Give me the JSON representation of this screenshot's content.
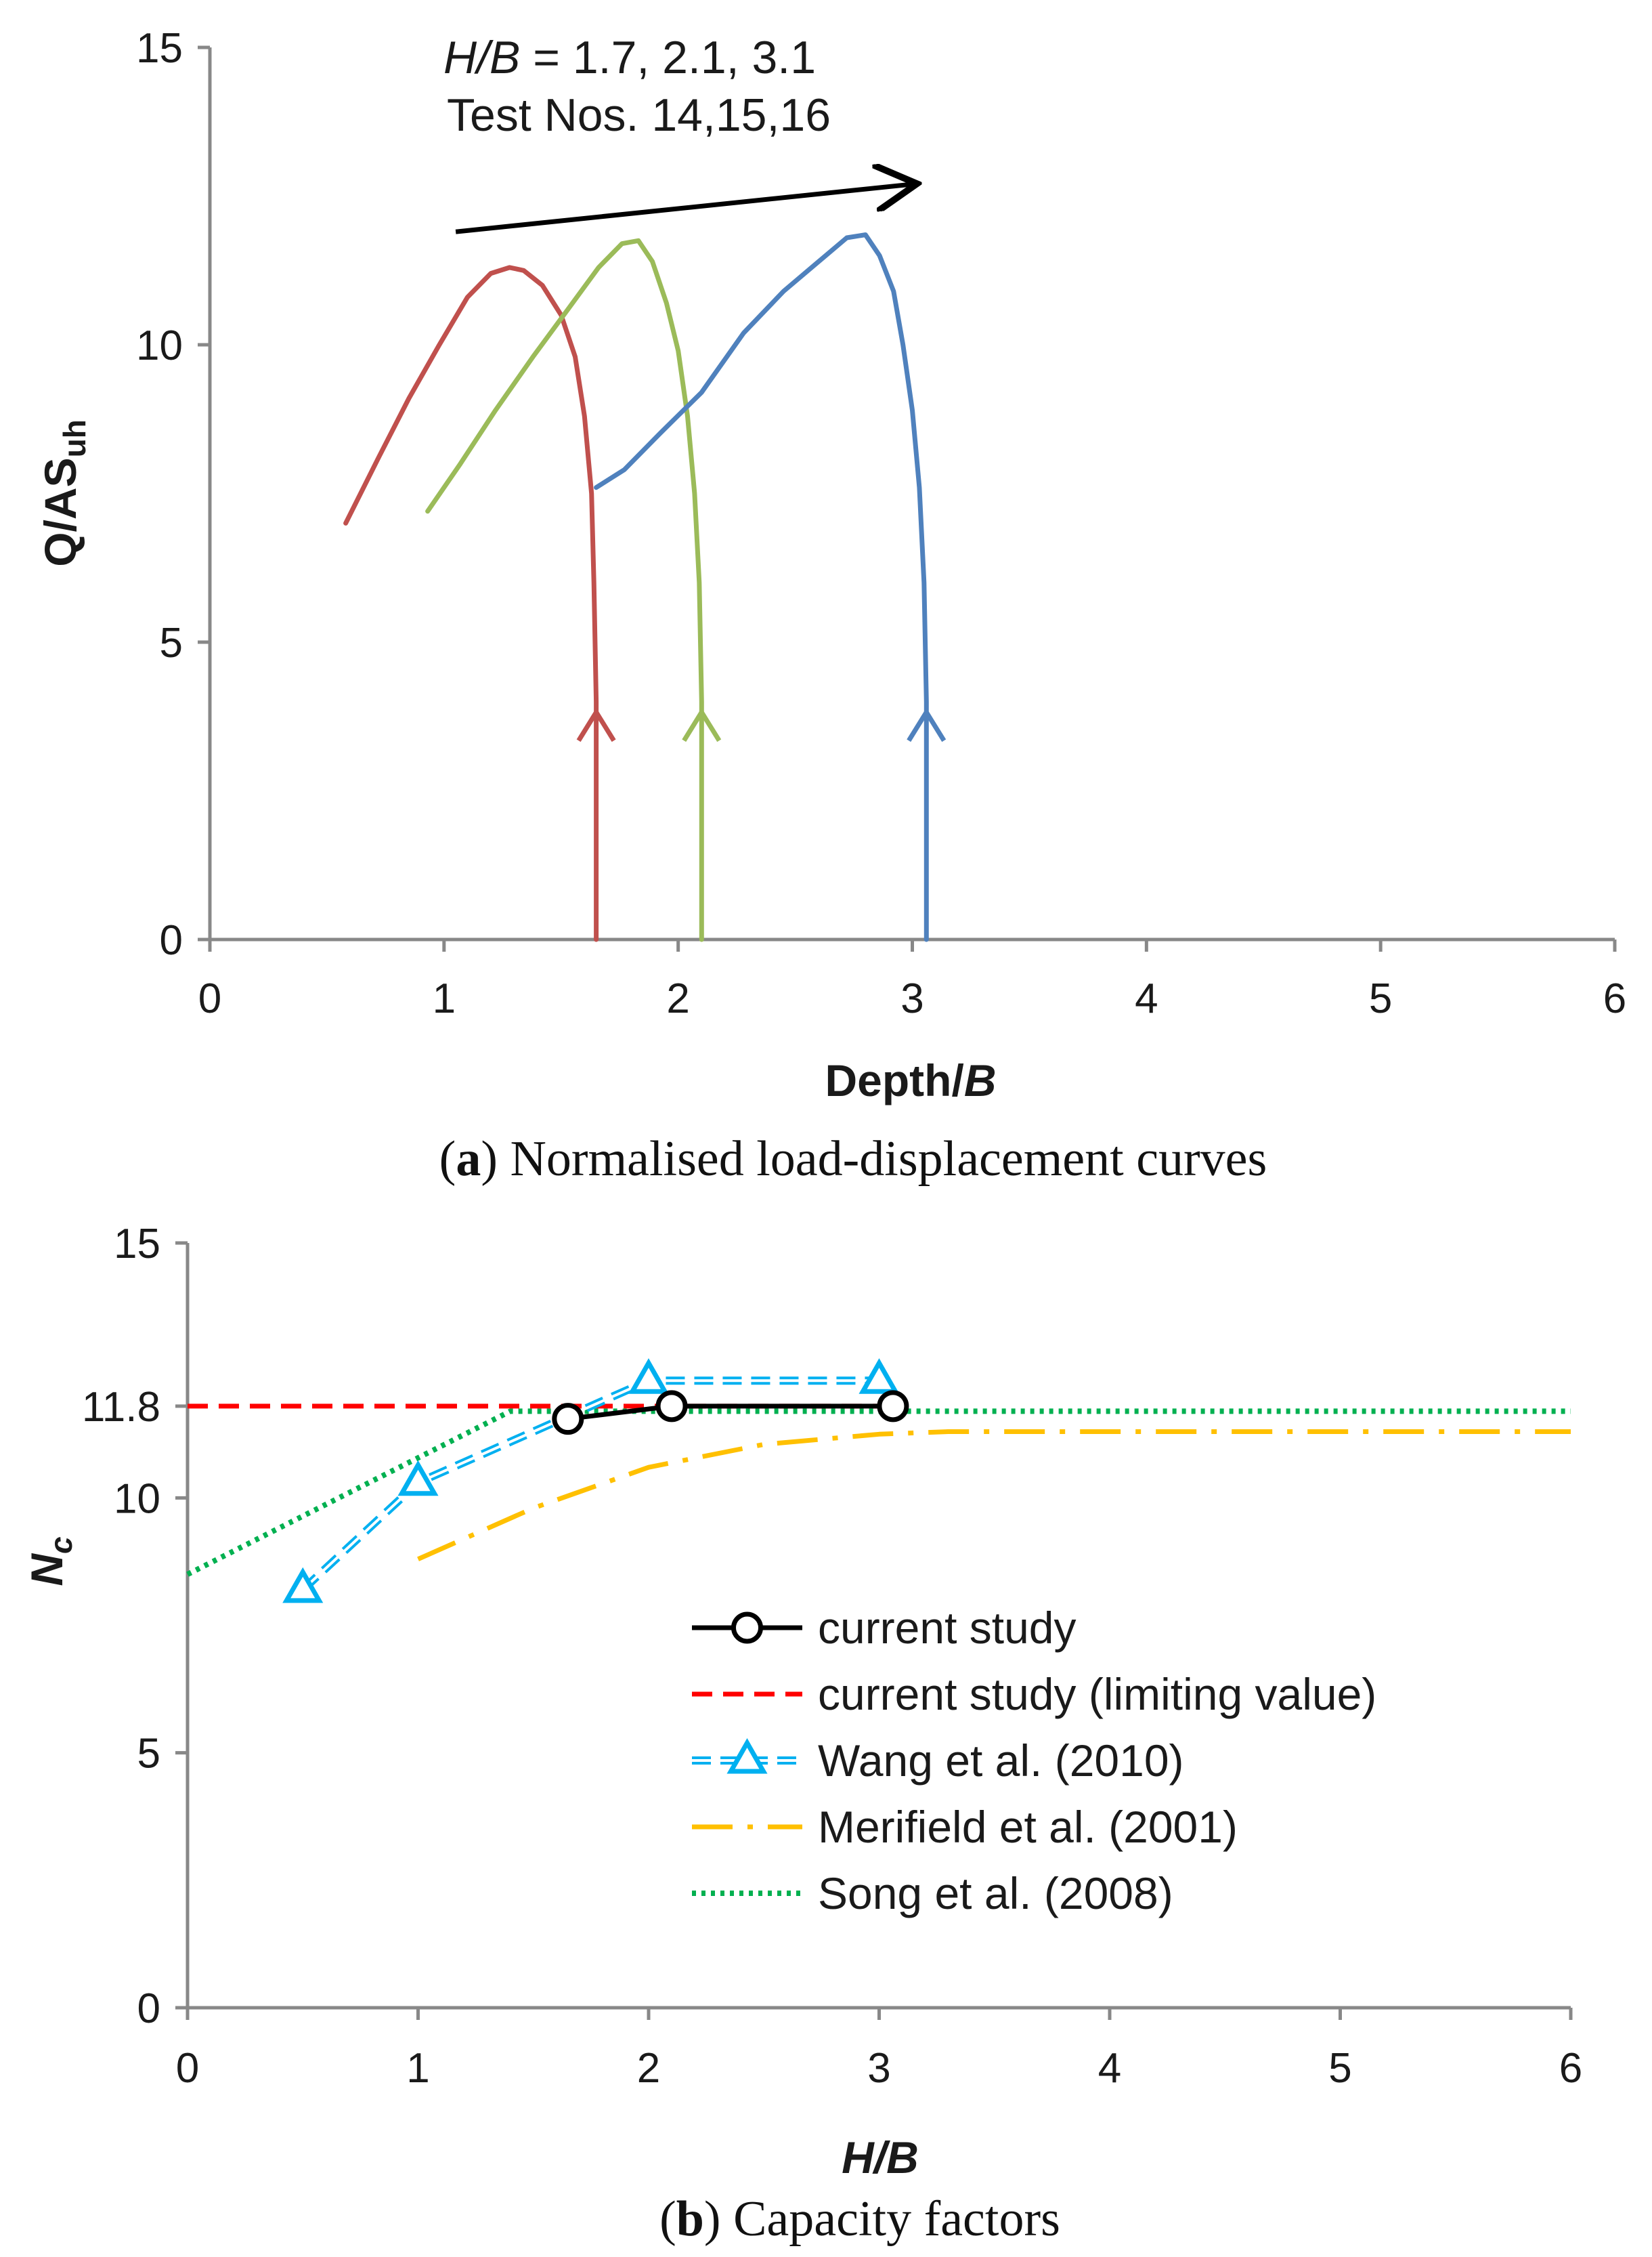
{
  "chart_data": [
    {
      "type": "line",
      "panel": "a",
      "caption_letter": "a",
      "caption_text": "Normalised load-displacement curves",
      "xlabel": "Depth/",
      "xlabel_italic": "B",
      "ylabel": "Q/AS",
      "ylabel_sub": "uh",
      "xlim": [
        0,
        6
      ],
      "ylim": [
        0,
        15
      ],
      "xticks": [
        "0",
        "1",
        "2",
        "3",
        "4",
        "5",
        "6"
      ],
      "yticks": [
        "0",
        "5",
        "10",
        "15"
      ],
      "annotation_line1_italic": "H/B",
      "annotation_line1_rest": " = 1.7, 2.1, 3.1",
      "annotation_line2": "Test Nos. 14,15,16",
      "arrow_from": [
        1.05,
        11.9
      ],
      "arrow_to": [
        3.0,
        12.7
      ],
      "series": [
        {
          "name": "H/B = 1.7 (Test No. 14)",
          "color": "#c0504d",
          "x": [
            1.65,
            1.65,
            1.64,
            1.63,
            1.6,
            1.56,
            1.5,
            1.42,
            1.34,
            1.28,
            1.2,
            1.1,
            0.98,
            0.85,
            0.72,
            0.58
          ],
          "y": [
            0,
            4.0,
            6.0,
            7.5,
            8.8,
            9.8,
            10.5,
            11.0,
            11.25,
            11.3,
            11.2,
            10.8,
            10.0,
            9.1,
            8.1,
            7.0
          ],
          "marker_x": 1.65,
          "marker_y": 3.8
        },
        {
          "name": "H/B = 2.1 (Test No. 15)",
          "color": "#9bbb59",
          "x": [
            2.1,
            2.1,
            2.09,
            2.07,
            2.04,
            2.0,
            1.95,
            1.89,
            1.83,
            1.76,
            1.66,
            1.53,
            1.38,
            1.22,
            1.07,
            0.93
          ],
          "y": [
            0,
            4.0,
            6.0,
            7.5,
            8.8,
            9.9,
            10.7,
            11.4,
            11.75,
            11.7,
            11.3,
            10.6,
            9.8,
            8.9,
            8.0,
            7.2
          ],
          "marker_x": 2.1,
          "marker_y": 3.8
        },
        {
          "name": "H/B = 3.1 (Test No. 16)",
          "color": "#4f81bd",
          "x": [
            3.06,
            3.06,
            3.05,
            3.03,
            3.0,
            2.96,
            2.92,
            2.86,
            2.8,
            2.72,
            2.6,
            2.45,
            2.28,
            2.1,
            1.92,
            1.77,
            1.65
          ],
          "y": [
            0,
            4.0,
            6.0,
            7.6,
            8.9,
            10.0,
            10.9,
            11.5,
            11.85,
            11.8,
            11.4,
            10.9,
            10.2,
            9.2,
            8.5,
            7.9,
            7.6
          ],
          "marker_x": 3.06,
          "marker_y": 3.8
        }
      ]
    },
    {
      "type": "line",
      "panel": "b",
      "caption_letter": "b",
      "caption_text": "Capacity factors",
      "xlabel_italic": "H/B",
      "ylabel": "N",
      "ylabel_sub": "c",
      "xlim": [
        0,
        6
      ],
      "ylim": [
        0,
        15
      ],
      "xticks": [
        "0",
        "1",
        "2",
        "3",
        "4",
        "5",
        "6"
      ],
      "yticks": [
        {
          "value": 0,
          "label": "0"
        },
        {
          "value": 5,
          "label": "5"
        },
        {
          "value": 10,
          "label": "10"
        },
        {
          "value": 11.8,
          "label": "11.8"
        },
        {
          "value": 15,
          "label": "15"
        }
      ],
      "series": [
        {
          "name": "current study",
          "color": "#000000",
          "style": "solid-circle",
          "x": [
            1.65,
            2.1,
            3.06
          ],
          "y": [
            11.55,
            11.8,
            11.8
          ]
        },
        {
          "name": "current study (limiting value)",
          "color": "#ff0000",
          "style": "dashed",
          "x": [
            0,
            3.0
          ],
          "y": [
            11.8,
            11.8
          ]
        },
        {
          "name": "Wang et al. (2010)",
          "color": "#00b0f0",
          "style": "double-dashed-triangle",
          "x": [
            0.5,
            1.0,
            2.0,
            3.0
          ],
          "y": [
            8.2,
            10.3,
            12.3,
            12.3
          ]
        },
        {
          "name": "Merifield et al. (2001)",
          "color": "#ffc000",
          "style": "dash-dot",
          "x": [
            1.0,
            1.5,
            2.0,
            2.5,
            3.0,
            3.3,
            4.0,
            5.0,
            6.0
          ],
          "y": [
            8.8,
            9.8,
            10.6,
            11.05,
            11.25,
            11.3,
            11.3,
            11.3,
            11.3
          ]
        },
        {
          "name": "Song et al. (2008)",
          "color": "#00b050",
          "style": "dotted",
          "x": [
            0,
            1.4,
            2.0,
            6.0
          ],
          "y": [
            8.5,
            11.7,
            11.7,
            11.7
          ]
        }
      ]
    }
  ]
}
